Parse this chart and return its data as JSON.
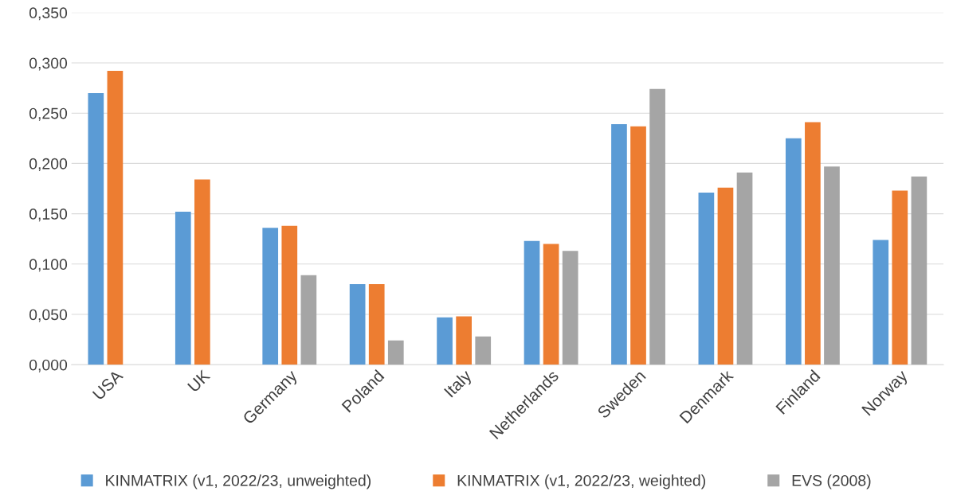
{
  "chart_data": {
    "type": "bar",
    "categories": [
      "USA",
      "UK",
      "Germany",
      "Poland",
      "Italy",
      "Netherlands",
      "Sweden",
      "Denmark",
      "Finland",
      "Norway"
    ],
    "series": [
      {
        "name": "KINMATRIX (v1, 2022/23, unweighted)",
        "color": "#5b9bd5",
        "values": [
          0.27,
          0.152,
          0.136,
          0.08,
          0.047,
          0.123,
          0.239,
          0.171,
          0.225,
          0.124
        ]
      },
      {
        "name": "KINMATRIX (v1, 2022/23, weighted)",
        "color": "#ed7d31",
        "values": [
          0.292,
          0.184,
          0.138,
          0.08,
          0.048,
          0.12,
          0.237,
          0.176,
          0.241,
          0.173
        ]
      },
      {
        "name": "EVS (2008)",
        "color": "#a5a5a5",
        "values": [
          null,
          null,
          0.089,
          0.024,
          0.028,
          0.113,
          0.274,
          0.191,
          0.197,
          0.187
        ]
      }
    ],
    "ylim": [
      0,
      0.35
    ],
    "yticks": [
      {
        "value": 0,
        "label": "0,000"
      },
      {
        "value": 0.05,
        "label": "0,050"
      },
      {
        "value": 0.1,
        "label": "0,100"
      },
      {
        "value": 0.15,
        "label": "0,150"
      },
      {
        "value": 0.2,
        "label": "0,200"
      },
      {
        "value": 0.25,
        "label": "0,250"
      },
      {
        "value": 0.3,
        "label": "0,300"
      },
      {
        "value": 0.35,
        "label": "0,350"
      }
    ],
    "grid": "y",
    "legend": "bottom"
  }
}
